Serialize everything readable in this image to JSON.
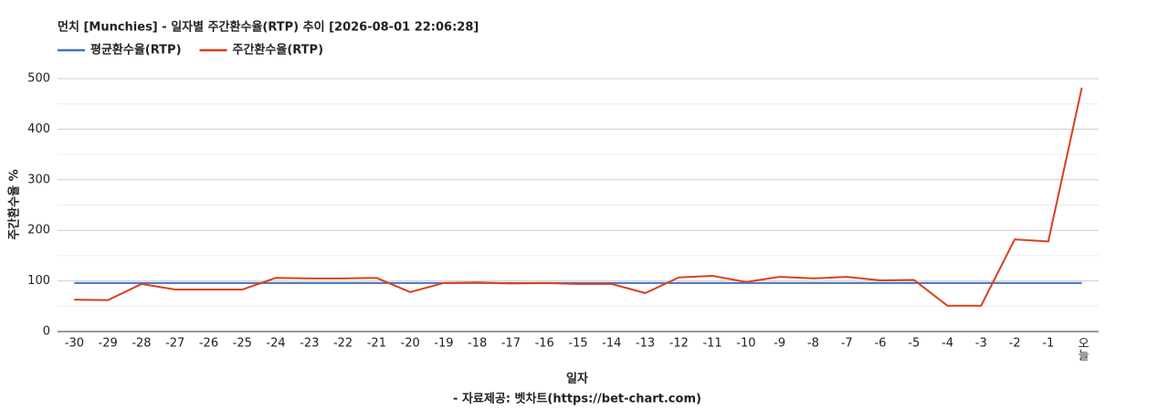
{
  "chart_data": {
    "type": "line",
    "title": "먼치 [Munchies] - 일자별 주간환수율(RTP) 추이 [2026-08-01 22:06:28]",
    "x_label": "일자",
    "y_label": "주간환수율 %",
    "footer": "- 자료제공: 벳차트(https://bet-chart.com)",
    "categories": [
      "-30",
      "-29",
      "-28",
      "-27",
      "-26",
      "-25",
      "-24",
      "-23",
      "-22",
      "-21",
      "-20",
      "-19",
      "-18",
      "-17",
      "-16",
      "-15",
      "-14",
      "-13",
      "-12",
      "-11",
      "-10",
      "-9",
      "-8",
      "-7",
      "-6",
      "-5",
      "-4",
      "-3",
      "-2",
      "-1",
      "오늘"
    ],
    "series": [
      {
        "name": "평균환수율(RTP)",
        "color": "#4472c4",
        "values": [
          96,
          96,
          96,
          96,
          96,
          96,
          96,
          96,
          96,
          96,
          96,
          96,
          96,
          96,
          96,
          96,
          96,
          96,
          96,
          96,
          96,
          96,
          96,
          96,
          96,
          96,
          96,
          96,
          96,
          96,
          96
        ]
      },
      {
        "name": "주간환수율(RTP)",
        "color": "#d9401e",
        "values": [
          63,
          62,
          94,
          83,
          83,
          83,
          106,
          105,
          105,
          106,
          78,
          96,
          97,
          95,
          96,
          94,
          94,
          76,
          107,
          110,
          98,
          108,
          105,
          108,
          101,
          102,
          51,
          51,
          182,
          178,
          482
        ]
      }
    ],
    "ylim": [
      0,
      500
    ],
    "yticks": [
      0,
      100,
      200,
      300,
      400,
      500
    ],
    "grid": true
  }
}
